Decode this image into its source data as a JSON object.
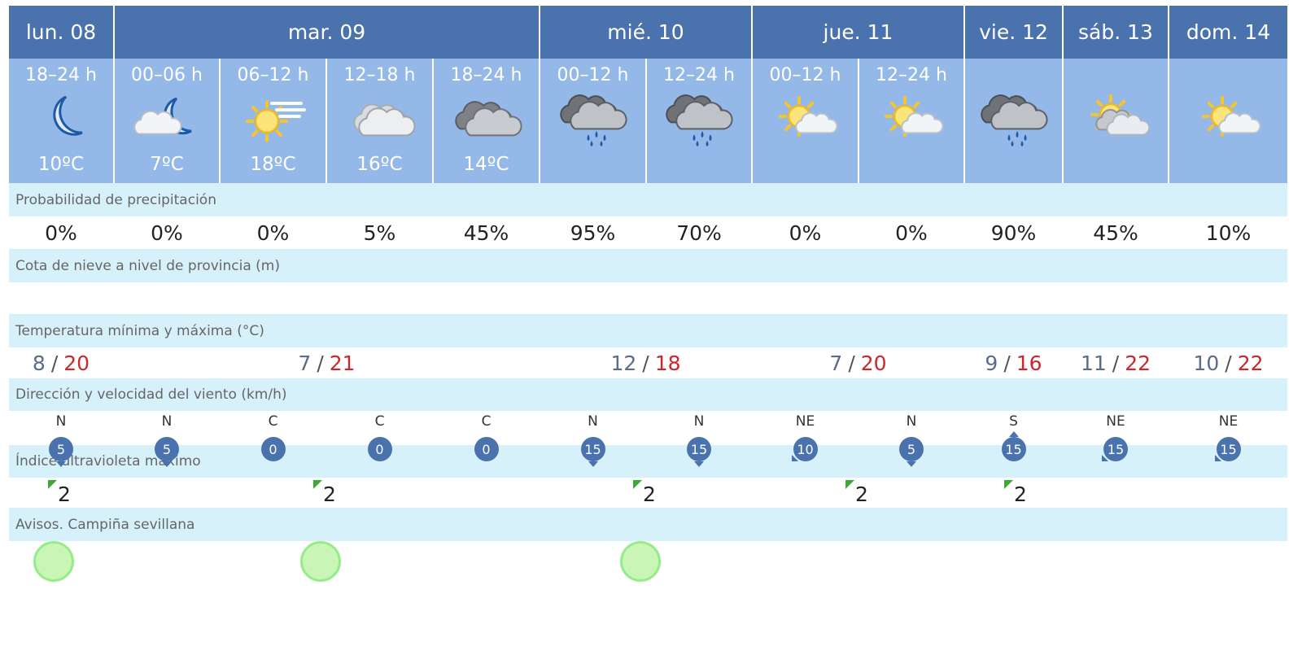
{
  "days": [
    {
      "label": "lun. 08",
      "span": 1
    },
    {
      "label": "mar. 09",
      "span": 4
    },
    {
      "label": "mié. 10",
      "span": 2
    },
    {
      "label": "jue. 11",
      "span": 2
    },
    {
      "label": "vie. 12",
      "span": 1
    },
    {
      "label": "sáb. 13",
      "span": 1
    },
    {
      "label": "dom. 14",
      "span": 1
    }
  ],
  "periods": [
    {
      "time": "18–24 h",
      "icon": "moon-clear-icon",
      "temp": "10ºC"
    },
    {
      "time": "00–06 h",
      "icon": "moon-cloud-icon",
      "temp": "7ºC"
    },
    {
      "time": "06–12 h",
      "icon": "sun-haze-icon",
      "temp": "18ºC"
    },
    {
      "time": "12–18 h",
      "icon": "cloudy-icon",
      "temp": "16ºC"
    },
    {
      "time": "18–24 h",
      "icon": "overcast-icon",
      "temp": "14ºC"
    },
    {
      "time": "00–12 h",
      "icon": "cloud-rain-icon",
      "temp": ""
    },
    {
      "time": "12–24 h",
      "icon": "cloud-rain-icon",
      "temp": ""
    },
    {
      "time": "00–12 h",
      "icon": "sun-cloud-icon",
      "temp": ""
    },
    {
      "time": "12–24 h",
      "icon": "sun-cloud-icon",
      "temp": ""
    },
    {
      "time": "",
      "icon": "cloud-rain-icon",
      "temp": ""
    },
    {
      "time": "",
      "icon": "sun-cloud-gray-icon",
      "temp": ""
    },
    {
      "time": "",
      "icon": "sun-cloud-icon",
      "temp": ""
    }
  ],
  "sections": {
    "precip": "Probabilidad de precipitación",
    "snow": "Cota de nieve a nivel de provincia (m)",
    "temp": "Temperatura mínima y máxima (°C)",
    "wind": "Dirección y velocidad del viento (km/h)",
    "uv": "Índice ultravioleta máximo",
    "warnings": "Avisos. Campiña sevillana"
  },
  "precipitation": [
    "0%",
    "0%",
    "0%",
    "5%",
    "45%",
    "95%",
    "70%",
    "0%",
    "0%",
    "90%",
    "45%",
    "10%"
  ],
  "temperatures": [
    {
      "min": "8",
      "max": "20",
      "span": 1
    },
    {
      "min": "7",
      "max": "21",
      "span": 4
    },
    {
      "min": "12",
      "max": "18",
      "span": 2
    },
    {
      "min": "7",
      "max": "20",
      "span": 2
    },
    {
      "min": "9",
      "max": "16",
      "span": 1
    },
    {
      "min": "11",
      "max": "22",
      "span": 1
    },
    {
      "min": "10",
      "max": "22",
      "span": 1
    }
  ],
  "wind": [
    {
      "dir": "N",
      "speed": "5",
      "arrow": "down"
    },
    {
      "dir": "N",
      "speed": "5",
      "arrow": "down"
    },
    {
      "dir": "C",
      "speed": "0",
      "arrow": "none"
    },
    {
      "dir": "C",
      "speed": "0",
      "arrow": "none"
    },
    {
      "dir": "C",
      "speed": "0",
      "arrow": "none"
    },
    {
      "dir": "N",
      "speed": "15",
      "arrow": "down"
    },
    {
      "dir": "N",
      "speed": "15",
      "arrow": "down"
    },
    {
      "dir": "NE",
      "speed": "10",
      "arrow": "sw"
    },
    {
      "dir": "N",
      "speed": "5",
      "arrow": "down"
    },
    {
      "dir": "S",
      "speed": "15",
      "arrow": "up"
    },
    {
      "dir": "NE",
      "speed": "15",
      "arrow": "sw"
    },
    {
      "dir": "NE",
      "speed": "15",
      "arrow": "sw"
    }
  ],
  "uv": [
    {
      "value": "2",
      "span": 1
    },
    {
      "value": "2",
      "span": 4
    },
    {
      "value": "2",
      "span": 2
    },
    {
      "value": "2",
      "span": 2
    },
    {
      "value": "2",
      "span": 1
    },
    {
      "value": "",
      "span": 1
    },
    {
      "value": "",
      "span": 1
    }
  ],
  "warnings": [
    {
      "level": "green",
      "span": 1
    },
    {
      "level": "green",
      "span": 4
    },
    {
      "level": "green",
      "span": 2
    },
    {
      "level": "none",
      "span": 2
    },
    {
      "level": "none",
      "span": 1
    },
    {
      "level": "none",
      "span": 1
    },
    {
      "level": "none",
      "span": 1
    }
  ],
  "colors": {
    "header": "#4a72ad",
    "period": "#94b9e9",
    "section": "#d7f1fb",
    "max_temp": "#c9282d",
    "min_temp": "#5a6c88",
    "uv_low": "#3aaa35",
    "warning_green": "#c9f5b6"
  }
}
